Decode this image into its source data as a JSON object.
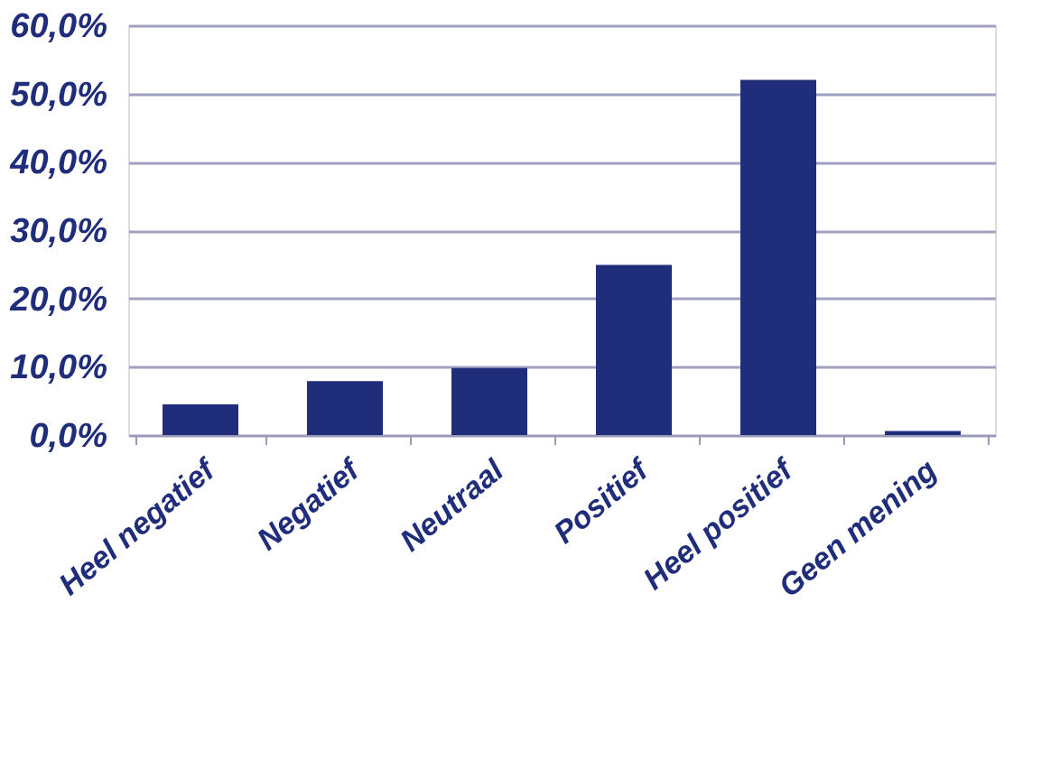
{
  "chart_data": {
    "type": "bar",
    "categories": [
      "Heel negatief",
      "Negatief",
      "Neutraal",
      "Positief",
      "Heel positief",
      "Geen mening"
    ],
    "values": [
      4.5,
      7.9,
      9.8,
      24.9,
      52.0,
      0.6
    ],
    "color": "#1f2d7b",
    "ylim": [
      0,
      60
    ],
    "yticks": [
      {
        "value": 0,
        "label": "0,0%"
      },
      {
        "value": 10,
        "label": "10,0%"
      },
      {
        "value": 20,
        "label": "20,0%"
      },
      {
        "value": 30,
        "label": "30,0%"
      },
      {
        "value": 40,
        "label": "40,0%"
      },
      {
        "value": 50,
        "label": "50,0%"
      },
      {
        "value": 60,
        "label": "60,0%"
      }
    ],
    "grid": "y"
  }
}
